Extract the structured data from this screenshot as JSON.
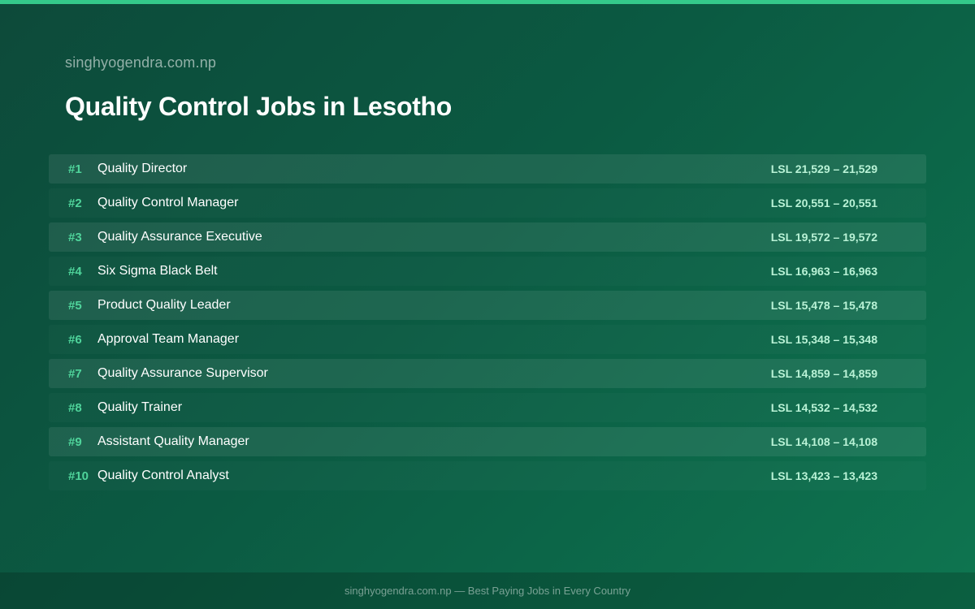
{
  "site_name": "singhyogendra.com.np",
  "page_title": "Quality Control Jobs in Lesotho",
  "jobs": [
    {
      "rank": "#1",
      "title": "Quality Director",
      "salary": "LSL 21,529 – 21,529"
    },
    {
      "rank": "#2",
      "title": "Quality Control Manager",
      "salary": "LSL 20,551 – 20,551"
    },
    {
      "rank": "#3",
      "title": "Quality Assurance Executive",
      "salary": "LSL 19,572 – 19,572"
    },
    {
      "rank": "#4",
      "title": "Six Sigma Black Belt",
      "salary": "LSL 16,963 – 16,963"
    },
    {
      "rank": "#5",
      "title": "Product Quality Leader",
      "salary": "LSL 15,478 – 15,478"
    },
    {
      "rank": "#6",
      "title": "Approval Team Manager",
      "salary": "LSL 15,348 – 15,348"
    },
    {
      "rank": "#7",
      "title": "Quality Assurance Supervisor",
      "salary": "LSL 14,859 – 14,859"
    },
    {
      "rank": "#8",
      "title": "Quality Trainer",
      "salary": "LSL 14,532 – 14,532"
    },
    {
      "rank": "#9",
      "title": "Assistant Quality Manager",
      "salary": "LSL 14,108 – 14,108"
    },
    {
      "rank": "#10",
      "title": "Quality Control Analyst",
      "salary": "LSL 13,423 – 13,423"
    }
  ],
  "footer": {
    "text": "singhyogendra.com.np — Best Paying Jobs in Every Country"
  },
  "colors": {
    "accent": "#34c98a",
    "rank": "#4fd49b",
    "salary": "#b9f2d6"
  }
}
